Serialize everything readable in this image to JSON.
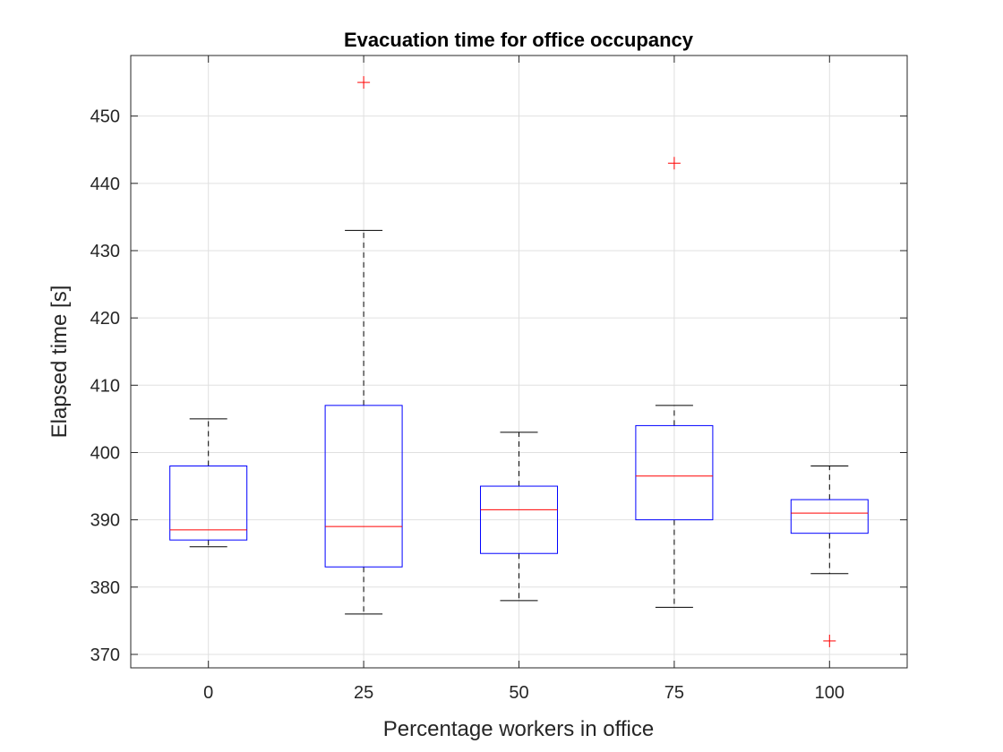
{
  "chart_data": {
    "type": "box",
    "title": "Evacuation time for office occupancy",
    "xlabel": "Percentage workers in office",
    "ylabel": "Elapsed time [s]",
    "categories": [
      "0",
      "25",
      "50",
      "75",
      "100"
    ],
    "ylim": [
      368,
      459
    ],
    "yticks": [
      370,
      380,
      390,
      400,
      410,
      420,
      430,
      440,
      450
    ],
    "ytick_labels": [
      "370",
      "380",
      "390",
      "400",
      "410",
      "420",
      "430",
      "440",
      "450"
    ],
    "grid": true,
    "boxes": [
      {
        "category": "0",
        "whisker_low": 386,
        "q1": 387,
        "median": 388.5,
        "q3": 398,
        "whisker_high": 405,
        "outliers": []
      },
      {
        "category": "25",
        "whisker_low": 376,
        "q1": 383,
        "median": 389,
        "q3": 407,
        "whisker_high": 433,
        "outliers": [
          455
        ]
      },
      {
        "category": "50",
        "whisker_low": 378,
        "q1": 385,
        "median": 391.5,
        "q3": 395,
        "whisker_high": 403,
        "outliers": []
      },
      {
        "category": "75",
        "whisker_low": 377,
        "q1": 390,
        "median": 396.5,
        "q3": 404,
        "whisker_high": 407,
        "outliers": [
          443
        ]
      },
      {
        "category": "100",
        "whisker_low": 382,
        "q1": 388,
        "median": 391,
        "q3": 393,
        "whisker_high": 398,
        "outliers": [
          372
        ]
      }
    ],
    "colors": {
      "box": "#0000ff",
      "median": "#ff0000",
      "whisker": "#000000",
      "outlier": "#ff0000",
      "grid": "#e0e0e0",
      "axes": "#262626"
    }
  }
}
